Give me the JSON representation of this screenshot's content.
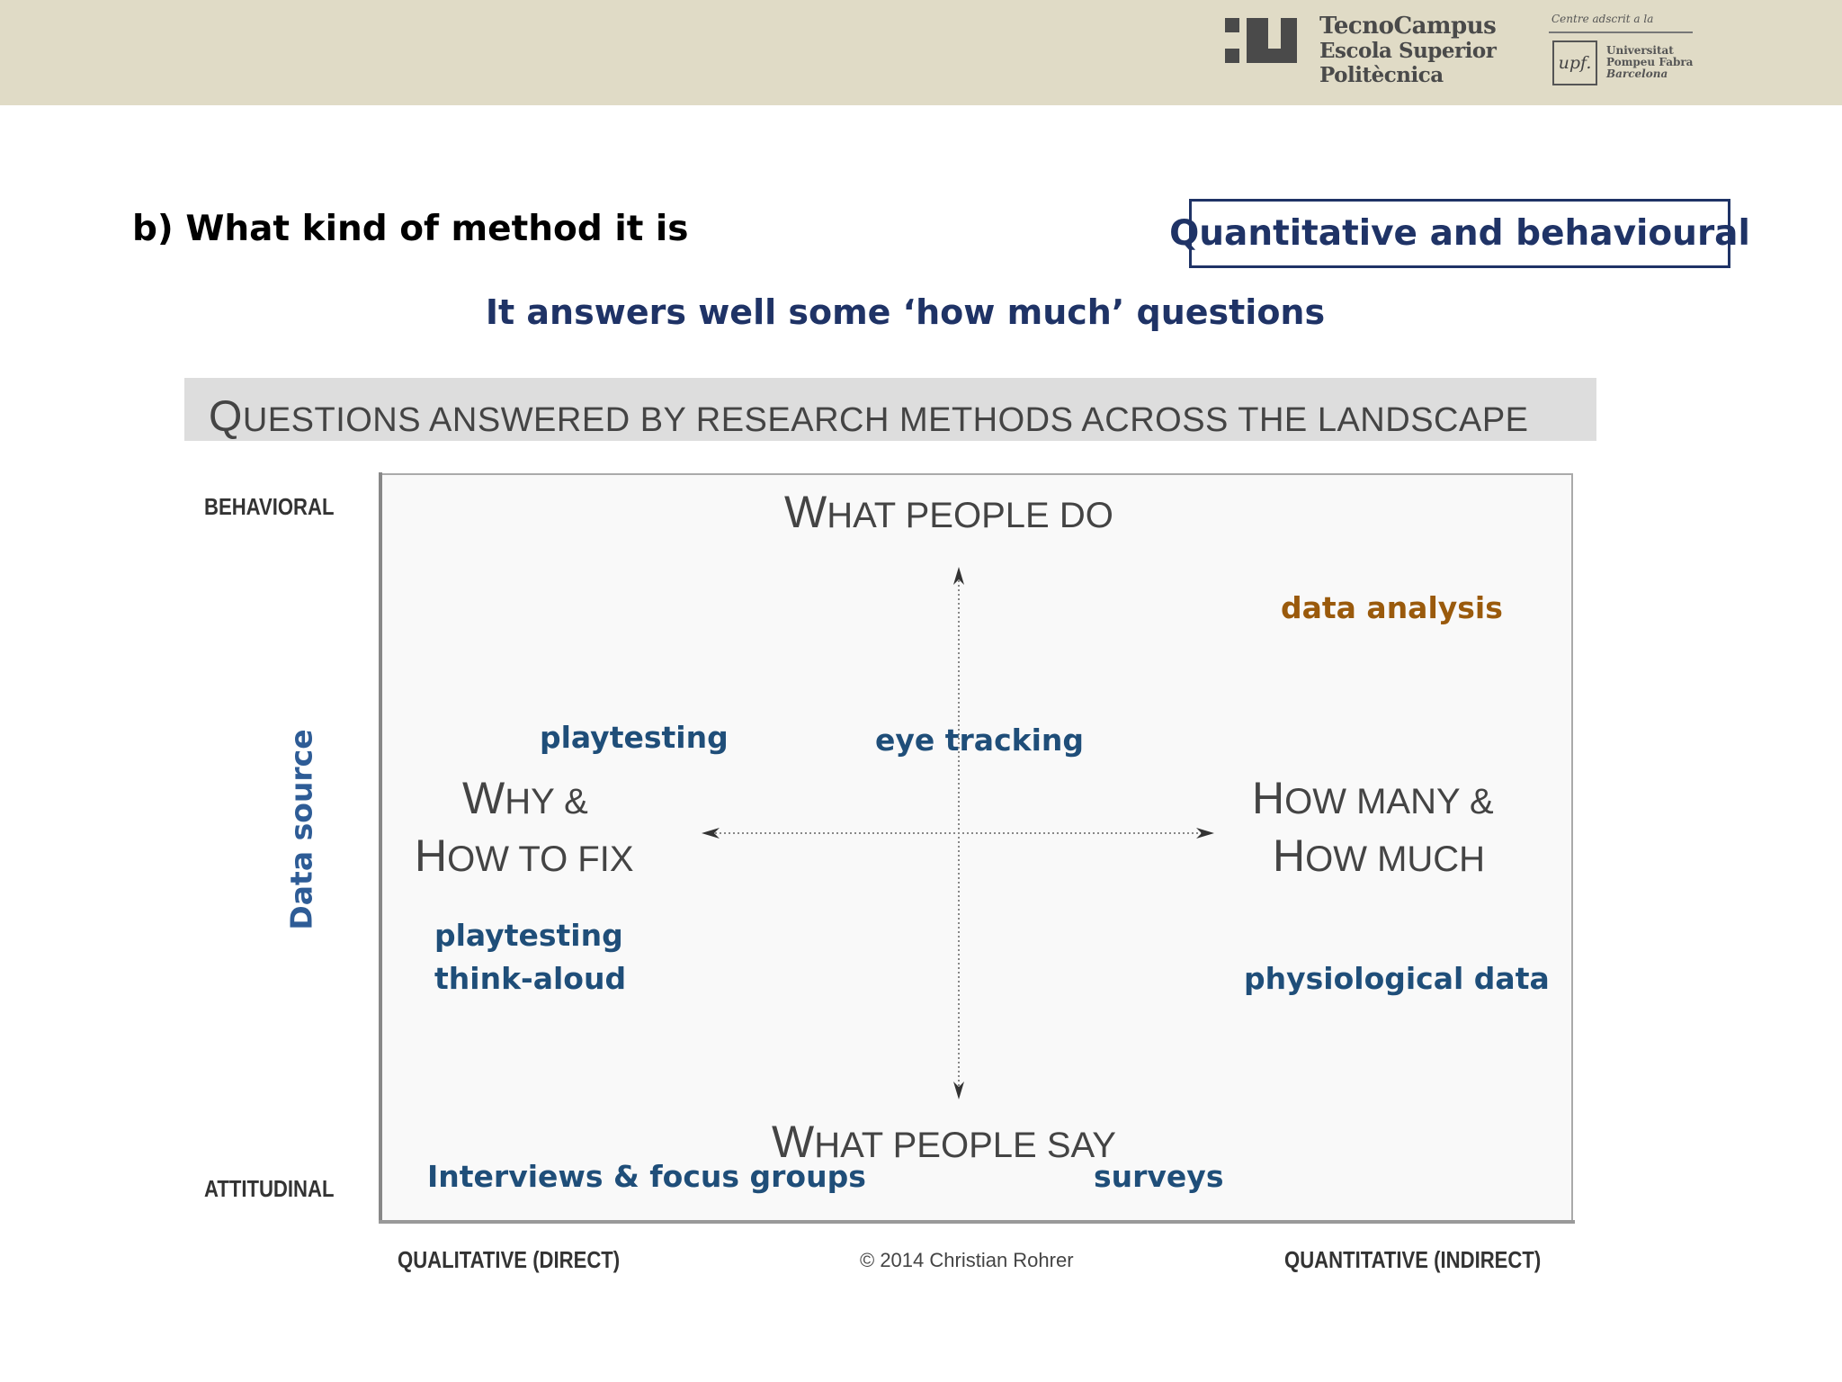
{
  "header": {
    "brand_line1": "TecnoCampus",
    "brand_line2": "Escola Superior",
    "brand_line3": "Politècnica",
    "upf_caption": "Centre adscrit a la",
    "upf_logo": "upf.",
    "upf_line1": "Universitat",
    "upf_line2": "Pompeu Fabra",
    "upf_line3": "Barcelona"
  },
  "slide": {
    "method_title": "b) What kind of method it is",
    "boxed_label": "Quantitative and behavioural",
    "subheading": "It answers well some ‘how much’ questions"
  },
  "diagram": {
    "banner_first": "Q",
    "banner_rest": "UESTIONS ANSWERED BY RESEARCH METHODS ACROSS THE LANDSCAPE",
    "axis_top": "BEHAVIORAL",
    "axis_bottom": "ATTITUDINAL",
    "axis_left": "QUALITATIVE (DIRECT)",
    "axis_right": "QUANTITATIVE (INDIRECT)",
    "y_axis_title": "Data source",
    "top_first": "W",
    "top_rest": "HAT PEOPLE DO",
    "bottom_first": "W",
    "bottom_rest": "HAT PEOPLE SAY",
    "left_l1_first": "W",
    "left_l1_rest": "HY &",
    "left_l2_first": "H",
    "left_l2_rest": "OW TO FIX",
    "right_l1_first": "H",
    "right_l1_rest": "OW MANY &",
    "right_l2_first": "H",
    "right_l2_rest": "OW MUCH",
    "copyright": "© 2014 Christian Rohrer",
    "methods": {
      "data_analysis": "data analysis",
      "playtesting_top": "playtesting",
      "eye_tracking": "eye tracking",
      "playtesting_bottom": "playtesting",
      "think_aloud": "think-aloud",
      "physiological": "physiological data",
      "interviews": "Interviews & focus groups",
      "surveys": "surveys"
    }
  }
}
